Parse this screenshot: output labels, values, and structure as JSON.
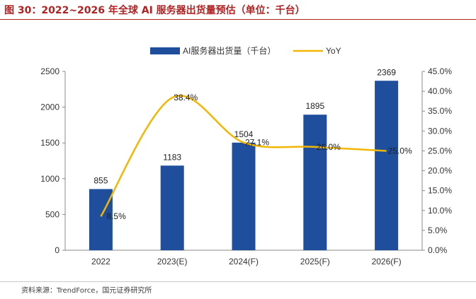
{
  "figure": {
    "title": "图 30：2022~2026 年全球 AI 服务器出货量预估（单位：千台）",
    "source": "资料来源：TrendForce，国元证券研究所"
  },
  "chart_data": {
    "type": "bar",
    "categories": [
      "2022",
      "2023(E)",
      "2024(F)",
      "2025(F)",
      "2026(F)"
    ],
    "series": [
      {
        "name": "AI服务器出货量（千台）",
        "type": "bar",
        "axis": "left",
        "color": "#1f4e9c",
        "values": [
          855,
          1183,
          1504,
          1895,
          2369
        ],
        "labels": [
          "855",
          "1183",
          "1504",
          "1895",
          "2369"
        ]
      },
      {
        "name": "YoY",
        "type": "line",
        "axis": "right",
        "color": "#f2b705",
        "smooth": true,
        "values": [
          8.5,
          38.4,
          27.1,
          26.0,
          25.0
        ],
        "labels": [
          "8.5%",
          "38.4%",
          "27.1%",
          "26.0%",
          "25.0%"
        ]
      }
    ],
    "y_left": {
      "ylim": [
        0,
        2500
      ],
      "ticks": [
        "0",
        "500",
        "1000",
        "1500",
        "2000",
        "2500"
      ]
    },
    "y_right": {
      "ylim": [
        0,
        45
      ],
      "ticks": [
        "0.0%",
        "5.0%",
        "10.0%",
        "15.0%",
        "20.0%",
        "25.0%",
        "30.0%",
        "35.0%",
        "40.0%",
        "45.0%"
      ]
    },
    "legend_position": "top",
    "grid": false
  }
}
